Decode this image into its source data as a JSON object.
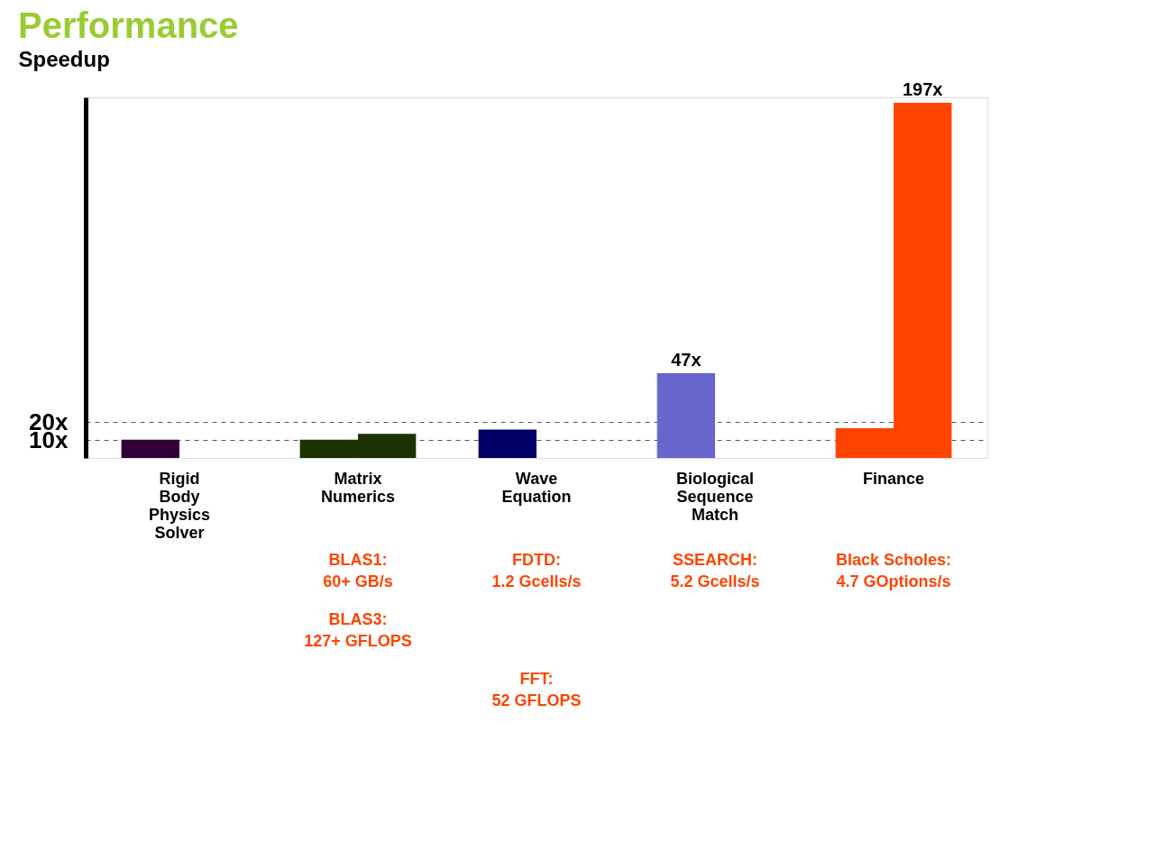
{
  "chart_data": {
    "type": "bar",
    "title": "Performance",
    "ylabel": "Speedup",
    "categories": [
      "Rigid Body Physics Solver",
      "Matrix Numerics",
      "Wave Equation",
      "Biological Sequence Match",
      "Finance"
    ],
    "series": [
      {
        "colors": [
          "#33003a",
          "#1a3300",
          "#000066",
          "#6666cc",
          "#ff4400"
        ],
        "values": [
          10.1,
          10.1,
          15.7,
          47,
          16.5
        ],
        "value_labels": [
          null,
          null,
          null,
          "47x",
          null
        ]
      },
      {
        "colors": [
          "#33003a",
          "#1a3300",
          "#000066",
          "#6666cc",
          "#ff4400"
        ],
        "values": [
          null,
          13.4,
          null,
          null,
          197
        ],
        "value_labels": [
          null,
          null,
          null,
          null,
          "197x"
        ]
      }
    ],
    "ylim": [
      0,
      200
    ],
    "yticks": [
      {
        "value": 10,
        "label": "10x"
      },
      {
        "value": 20,
        "label": "20x"
      }
    ],
    "grid": "y",
    "line_style": "dashed",
    "annotations": [
      "BLAS1: 60+ GB/s",
      "BLAS3: 127+ GFLOPS",
      "FDTD: 1.2 Gcells/s",
      "FFT: 52 GFLOPS",
      "SSEARCH: 5.2 Gcells/s",
      "Black Scholes: 4.7 GOptions/s"
    ]
  }
}
